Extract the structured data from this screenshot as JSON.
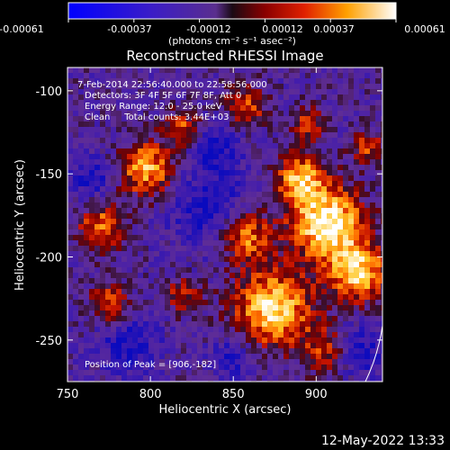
{
  "colors": {
    "background": "#000000",
    "text": "#ffffff",
    "limb": "#ffffff"
  },
  "colorbar": {
    "tick_labels": [
      "-0.00061",
      "-0.00037",
      "-0.00012",
      "0.00012",
      "0.00037",
      "0.00061"
    ],
    "range": [
      -0.00061,
      0.00061
    ],
    "unit_label": "(photons cm⁻² s⁻¹ asec⁻²)"
  },
  "chart_data": {
    "type": "heatmap",
    "title": "Reconstructed RHESSI Image",
    "xlabel": "Heliocentric X (arcsec)",
    "ylabel": "Heliocentric Y (arcsec)",
    "xlim": [
      750,
      940
    ],
    "ylim": [
      -275,
      -86
    ],
    "x_ticks": [
      750,
      800,
      850,
      900
    ],
    "y_ticks": [
      -100,
      -150,
      -200,
      -250
    ],
    "peak": [
      906,
      -182
    ],
    "annotations": [
      "7-Feb-2014 22:56:40.000 to 22:58:56.000",
      "Detectors: 3F 4F 5F 6F 7F 8F, Att 0",
      "Energy Range: 12.0 - 25.0 keV",
      "Clean     Total counts: 3.44E+03"
    ],
    "peak_label": "Position of Peak = [906,-182]"
  },
  "footer": {
    "timestamp": "12-May-2022 13:33"
  }
}
